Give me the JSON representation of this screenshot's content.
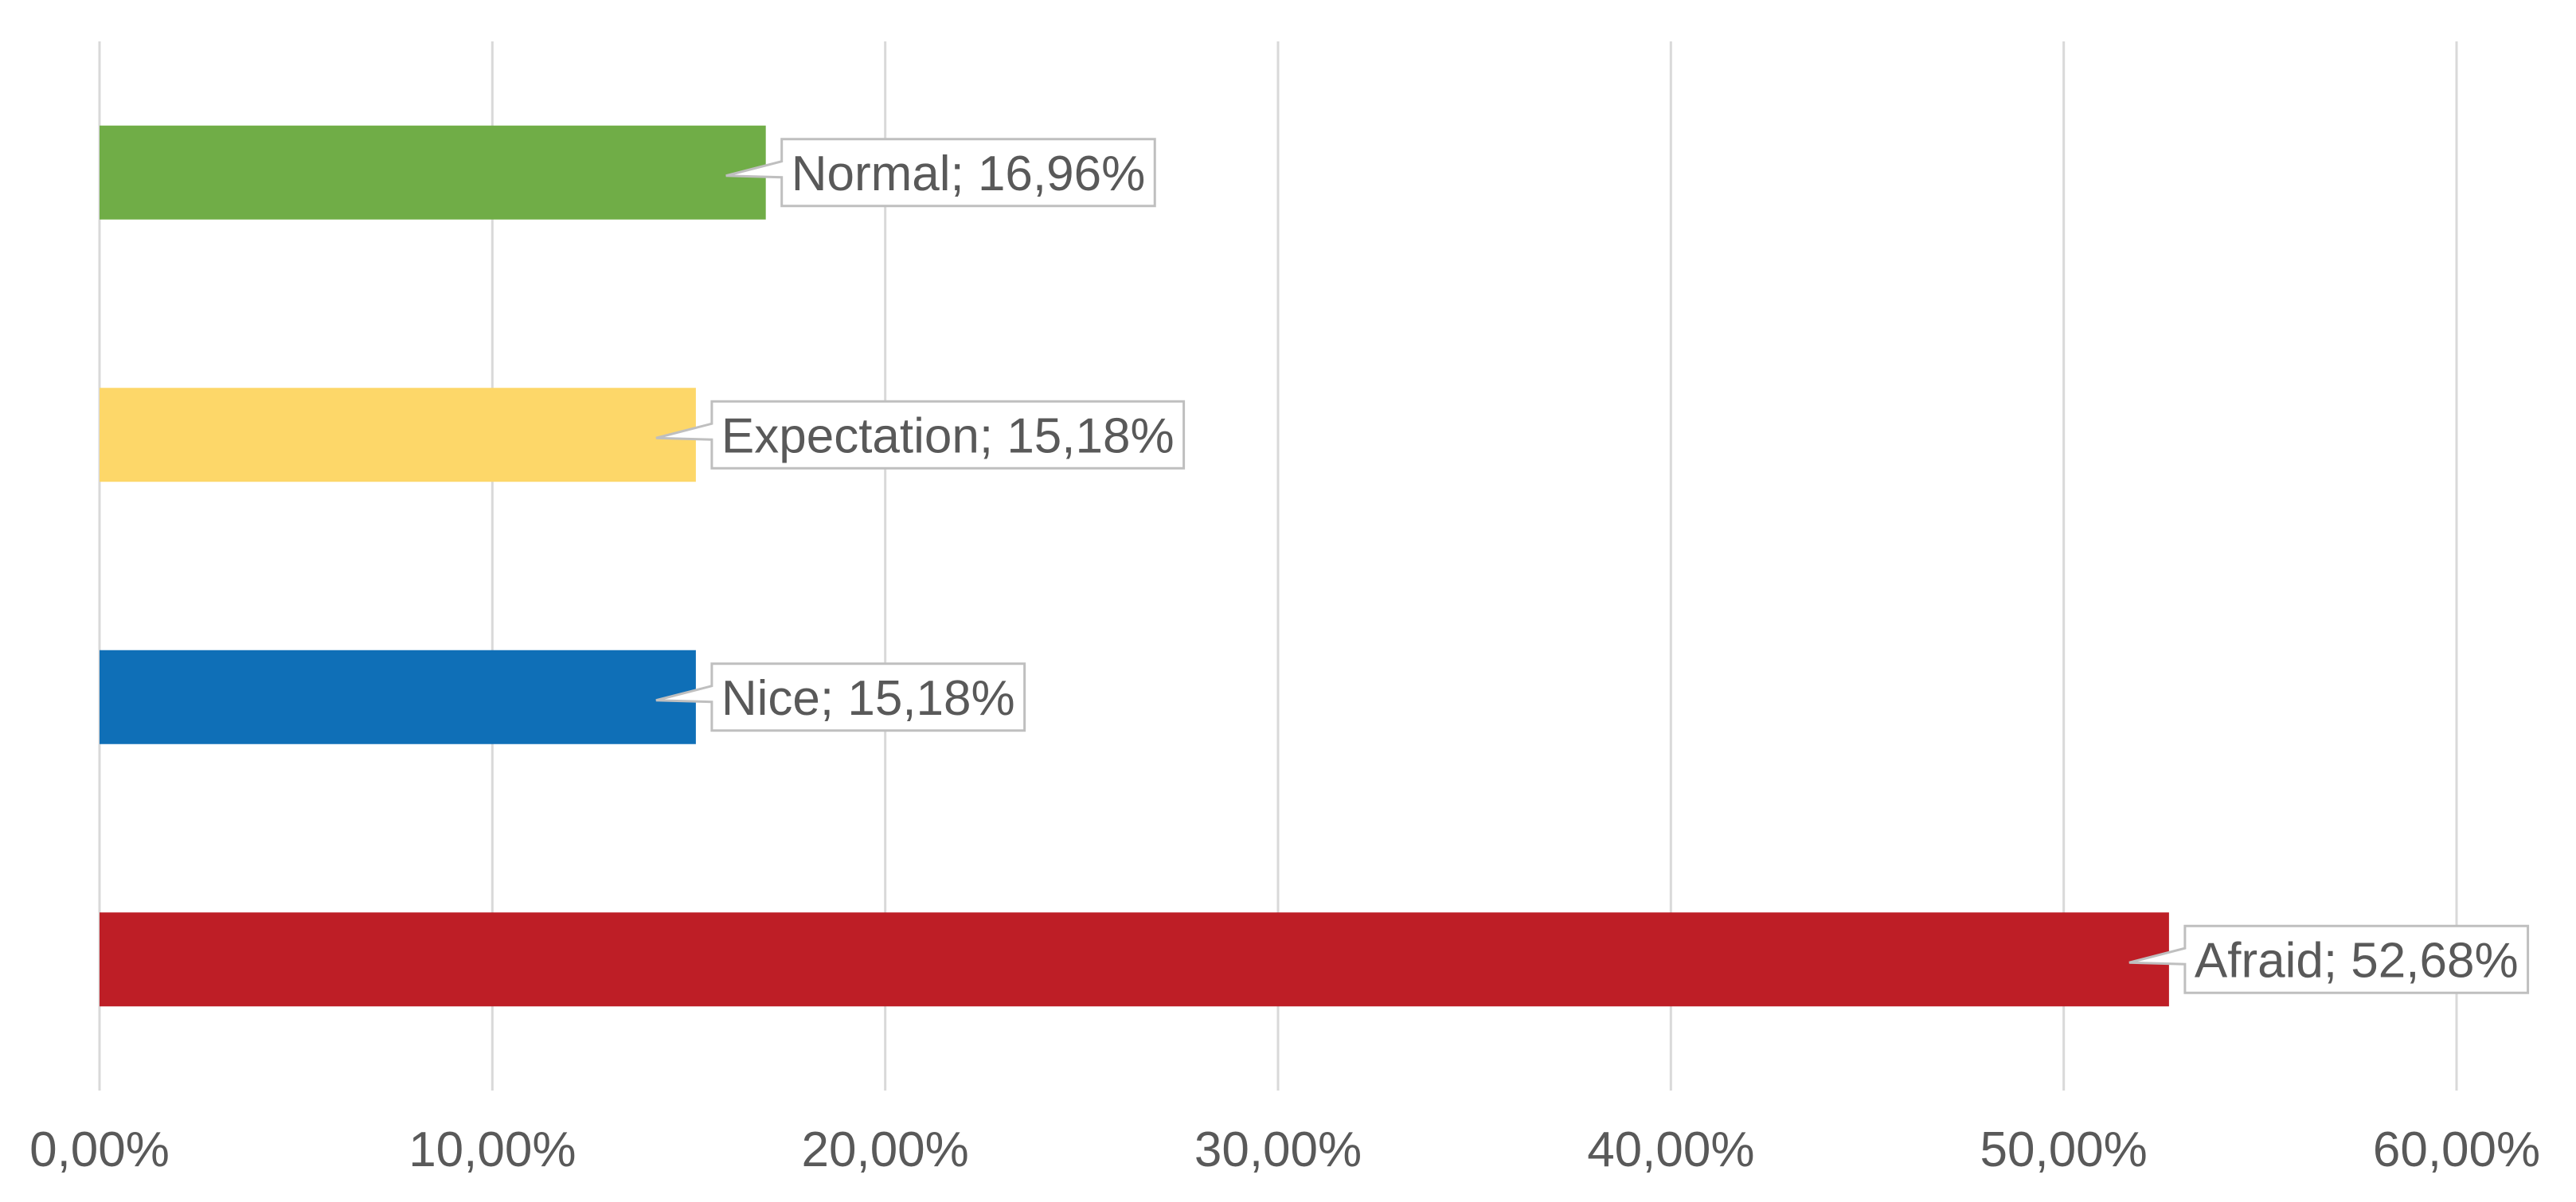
{
  "chart_data": {
    "type": "bar",
    "orientation": "horizontal",
    "title": "",
    "xlabel": "",
    "ylabel": "",
    "xlim": [
      0,
      60
    ],
    "x_ticks": [
      {
        "value": 0,
        "label": "0,00%"
      },
      {
        "value": 10,
        "label": "10,00%"
      },
      {
        "value": 20,
        "label": "20,00%"
      },
      {
        "value": 30,
        "label": "30,00%"
      },
      {
        "value": 40,
        "label": "40,00%"
      },
      {
        "value": 50,
        "label": "50,00%"
      },
      {
        "value": 60,
        "label": "60,00%"
      }
    ],
    "grid": "vertical",
    "legend": "none",
    "bars": [
      {
        "category": "Normal",
        "value": 16.96,
        "label": "Normal; 16,96%",
        "color": "#70ad47"
      },
      {
        "category": "Expectation",
        "value": 15.18,
        "label": "Expectation; 15,18%",
        "color": "#fdd769"
      },
      {
        "category": "Nice",
        "value": 15.18,
        "label": "Nice; 15,18%",
        "color": "#0f6fb7"
      },
      {
        "category": "Afraid",
        "value": 52.68,
        "label": "Afraid; 52,68%",
        "color": "#be1e26"
      }
    ]
  }
}
